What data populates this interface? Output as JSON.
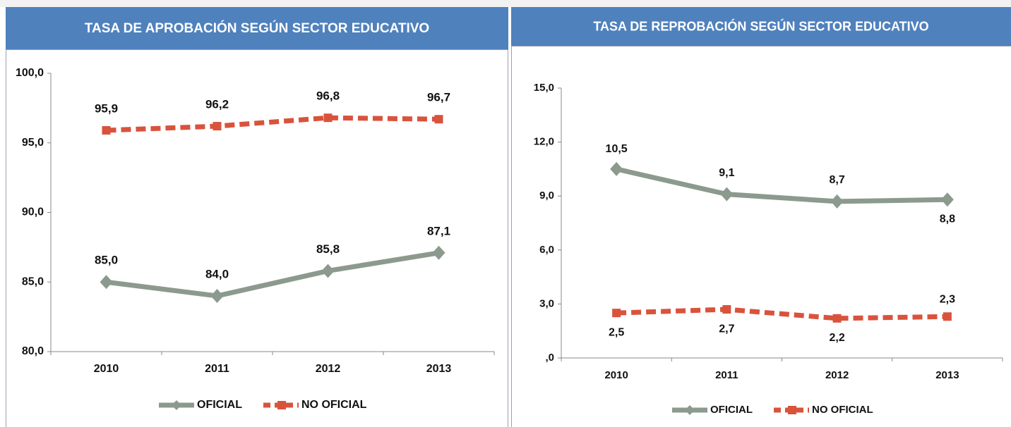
{
  "chart_data": [
    {
      "type": "line",
      "title": "TASA DE APROBACIÓN SEGÚN SECTOR EDUCATIVO",
      "categories": [
        "2010",
        "2011",
        "2012",
        "2013"
      ],
      "series": [
        {
          "name": "OFICIAL",
          "color": "#8c9a8e",
          "marker": "diamond",
          "dashed": false,
          "values": [
            85.0,
            84.0,
            85.8,
            87.1
          ],
          "value_labels": [
            "85,0",
            "84,0",
            "85,8",
            "87,1"
          ]
        },
        {
          "name": "NO OFICIAL",
          "color": "#d9533c",
          "marker": "square",
          "dashed": true,
          "values": [
            95.9,
            96.2,
            96.8,
            96.7
          ],
          "value_labels": [
            "95,9",
            "96,2",
            "96,8",
            "96,7"
          ]
        }
      ],
      "ylim": [
        80,
        100
      ],
      "yticks": [
        {
          "value": 80,
          "label": "80,0"
        },
        {
          "value": 85,
          "label": "85,0"
        },
        {
          "value": 90,
          "label": "90,0"
        },
        {
          "value": 95,
          "label": "95,0"
        },
        {
          "value": 100,
          "label": "100,0"
        }
      ],
      "legend": "bottom"
    },
    {
      "type": "line",
      "title": "TASA DE REPROBACIÓN SEGÚN SECTOR EDUCATIVO",
      "categories": [
        "2010",
        "2011",
        "2012",
        "2013"
      ],
      "series": [
        {
          "name": "OFICIAL",
          "color": "#8c9a8e",
          "marker": "diamond",
          "dashed": false,
          "values": [
            10.5,
            9.1,
            8.7,
            8.8
          ],
          "value_labels": [
            "10,5",
            "9,1",
            "8,7",
            "8,8"
          ]
        },
        {
          "name": "NO OFICIAL",
          "color": "#d9533c",
          "marker": "square",
          "dashed": true,
          "values": [
            2.5,
            2.7,
            2.2,
            2.3
          ],
          "value_labels": [
            "2,5",
            "2,7",
            "2,2",
            "2,3"
          ]
        }
      ],
      "ylim": [
        0,
        15
      ],
      "yticks": [
        {
          "value": 0,
          "label": ",0"
        },
        {
          "value": 3,
          "label": "3,0"
        },
        {
          "value": 6,
          "label": "6,0"
        },
        {
          "value": 9,
          "label": "9,0"
        },
        {
          "value": 12,
          "label": "12,0"
        },
        {
          "value": 15,
          "label": "15,0"
        }
      ],
      "legend": "bottom"
    }
  ]
}
